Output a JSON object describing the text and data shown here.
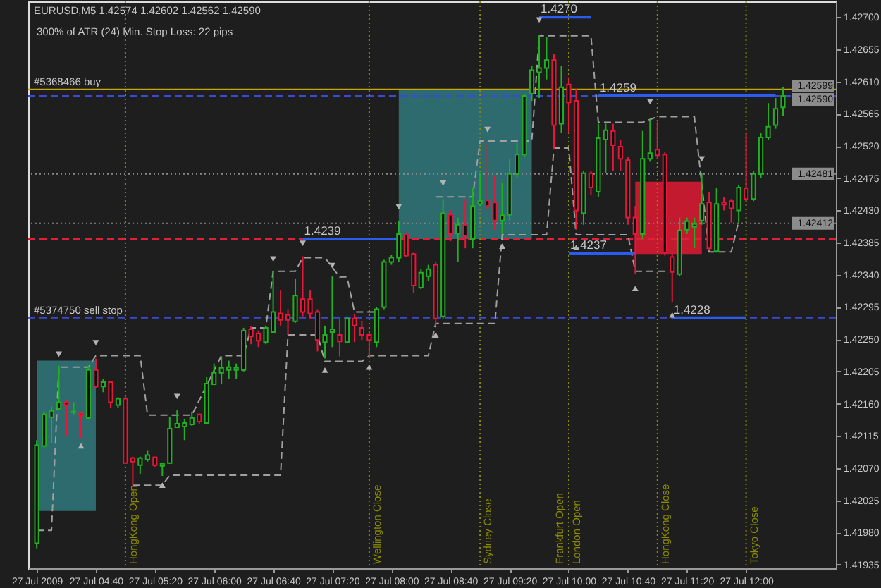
{
  "chart_data": {
    "type": "candlestick",
    "title": "EURUSD,M5 1.42574 1.42602 1.42562 1.42590",
    "subtitle": "300% of ATR (24) Min. Stop Loss: 22 pips",
    "x": [
      "2009-07-27T04:00",
      "2009-07-27T04:05",
      "2009-07-27T04:10",
      "2009-07-27T04:15",
      "2009-07-27T04:20",
      "2009-07-27T04:25",
      "2009-07-27T04:30",
      "2009-07-27T04:35",
      "2009-07-27T04:40",
      "2009-07-27T04:45",
      "2009-07-27T04:50",
      "2009-07-27T04:55",
      "2009-07-27T05:00",
      "2009-07-27T05:05",
      "2009-07-27T05:10",
      "2009-07-27T05:15",
      "2009-07-27T05:20",
      "2009-07-27T05:25",
      "2009-07-27T05:30",
      "2009-07-27T05:35",
      "2009-07-27T05:40",
      "2009-07-27T05:45",
      "2009-07-27T05:50",
      "2009-07-27T05:55",
      "2009-07-27T06:00",
      "2009-07-27T06:05",
      "2009-07-27T06:10",
      "2009-07-27T06:15",
      "2009-07-27T06:20",
      "2009-07-27T06:25",
      "2009-07-27T06:30",
      "2009-07-27T06:35",
      "2009-07-27T06:40",
      "2009-07-27T06:45",
      "2009-07-27T06:50",
      "2009-07-27T06:55",
      "2009-07-27T07:00",
      "2009-07-27T07:05",
      "2009-07-27T07:10",
      "2009-07-27T07:15",
      "2009-07-27T07:20",
      "2009-07-27T07:25",
      "2009-07-27T07:30",
      "2009-07-27T07:35",
      "2009-07-27T07:40",
      "2009-07-27T07:45",
      "2009-07-27T07:50",
      "2009-07-27T07:55",
      "2009-07-27T08:00",
      "2009-07-27T08:05",
      "2009-07-27T08:10",
      "2009-07-27T08:15",
      "2009-07-27T08:20",
      "2009-07-27T08:25",
      "2009-07-27T08:30",
      "2009-07-27T08:35",
      "2009-07-27T08:40",
      "2009-07-27T08:45",
      "2009-07-27T08:50",
      "2009-07-27T08:55",
      "2009-07-27T09:00",
      "2009-07-27T09:05",
      "2009-07-27T09:10",
      "2009-07-27T09:15",
      "2009-07-27T09:20",
      "2009-07-27T09:25",
      "2009-07-27T09:30",
      "2009-07-27T09:35",
      "2009-07-27T09:40",
      "2009-07-27T09:45",
      "2009-07-27T09:50",
      "2009-07-27T09:55",
      "2009-07-27T10:00",
      "2009-07-27T10:05",
      "2009-07-27T10:10",
      "2009-07-27T10:15",
      "2009-07-27T10:20",
      "2009-07-27T10:25",
      "2009-07-27T10:30",
      "2009-07-27T10:35",
      "2009-07-27T10:40",
      "2009-07-27T10:45",
      "2009-07-27T10:50",
      "2009-07-27T10:55",
      "2009-07-27T11:00",
      "2009-07-27T11:05",
      "2009-07-27T11:10",
      "2009-07-27T11:15",
      "2009-07-27T11:20",
      "2009-07-27T11:25",
      "2009-07-27T11:30",
      "2009-07-27T11:35",
      "2009-07-27T11:40",
      "2009-07-27T11:45",
      "2009-07-27T11:50",
      "2009-07-27T11:55",
      "2009-07-27T12:00",
      "2009-07-27T12:05",
      "2009-07-27T12:10",
      "2009-07-27T12:15",
      "2009-07-27T12:20",
      "2009-07-27T12:25"
    ],
    "ohlc": [
      [
        1.41965,
        1.42109,
        1.41958,
        1.42102
      ],
      [
        1.42101,
        1.42149,
        1.42099,
        1.42145
      ],
      [
        1.42141,
        1.42156,
        1.42105,
        1.4215
      ],
      [
        1.42153,
        1.42213,
        1.42151,
        1.42162
      ],
      [
        1.42162,
        1.42164,
        1.42115,
        1.42158
      ],
      [
        1.42148,
        1.42162,
        1.42145,
        1.42149
      ],
      [
        1.42146,
        1.42149,
        1.42112,
        1.42143
      ],
      [
        1.4214,
        1.42213,
        1.42138,
        1.42207
      ],
      [
        1.42207,
        1.42223,
        1.42182,
        1.42184
      ],
      [
        1.42184,
        1.42194,
        1.42176,
        1.4219
      ],
      [
        1.4219,
        1.42192,
        1.42154,
        1.42162
      ],
      [
        1.42158,
        1.42169,
        1.42154,
        1.42167
      ],
      [
        1.42167,
        1.42171,
        1.42076,
        1.42077
      ],
      [
        1.42084,
        1.42086,
        1.42046,
        1.42079
      ],
      [
        1.42074,
        1.42086,
        1.42061,
        1.42084
      ],
      [
        1.42082,
        1.42095,
        1.42079,
        1.42088
      ],
      [
        1.42085,
        1.42086,
        1.42072,
        1.42074
      ],
      [
        1.42073,
        1.42077,
        1.42059,
        1.42076
      ],
      [
        1.42077,
        1.42141,
        1.42076,
        1.42125
      ],
      [
        1.42127,
        1.42151,
        1.42126,
        1.42132
      ],
      [
        1.42128,
        1.42138,
        1.42109,
        1.42133
      ],
      [
        1.42131,
        1.42148,
        1.42129,
        1.4214
      ],
      [
        1.42145,
        1.42146,
        1.42131,
        1.42135
      ],
      [
        1.42133,
        1.42197,
        1.42131,
        1.42188
      ],
      [
        1.42187,
        1.42216,
        1.42186,
        1.42203
      ],
      [
        1.42203,
        1.42226,
        1.42187,
        1.4221
      ],
      [
        1.42207,
        1.4222,
        1.42194,
        1.42211
      ],
      [
        1.42207,
        1.42216,
        1.42194,
        1.4221
      ],
      [
        1.42207,
        1.42266,
        1.42205,
        1.42262
      ],
      [
        1.42264,
        1.42268,
        1.42243,
        1.42254
      ],
      [
        1.42258,
        1.42262,
        1.42239,
        1.42248
      ],
      [
        1.42246,
        1.42269,
        1.42243,
        1.42266
      ],
      [
        1.4226,
        1.42345,
        1.42259,
        1.42288
      ],
      [
        1.42286,
        1.42318,
        1.42269,
        1.42277
      ],
      [
        1.42284,
        1.42292,
        1.42256,
        1.42277
      ],
      [
        1.42275,
        1.42334,
        1.42273,
        1.42311
      ],
      [
        1.42306,
        1.42366,
        1.42282,
        1.42288
      ],
      [
        1.42306,
        1.42318,
        1.42279,
        1.42286
      ],
      [
        1.42288,
        1.42292,
        1.42233,
        1.42249
      ],
      [
        1.42246,
        1.42269,
        1.42223,
        1.42256
      ],
      [
        1.4226,
        1.42338,
        1.42239,
        1.42264
      ],
      [
        1.42256,
        1.42279,
        1.42226,
        1.42247
      ],
      [
        1.42246,
        1.42282,
        1.42245,
        1.42279
      ],
      [
        1.42279,
        1.42285,
        1.42246,
        1.42269
      ],
      [
        1.42266,
        1.42275,
        1.42249,
        1.42256
      ],
      [
        1.42256,
        1.42262,
        1.42226,
        1.42249
      ],
      [
        1.42246,
        1.42295,
        1.42239,
        1.42292
      ],
      [
        1.42295,
        1.42361,
        1.42292,
        1.42358
      ],
      [
        1.42358,
        1.42368,
        1.42354,
        1.42364
      ],
      [
        1.42364,
        1.42415,
        1.42358,
        1.42397
      ],
      [
        1.42396,
        1.42398,
        1.42365,
        1.42367
      ],
      [
        1.42369,
        1.42371,
        1.42315,
        1.42325
      ],
      [
        1.42322,
        1.42348,
        1.4232,
        1.42343
      ],
      [
        1.42338,
        1.42354,
        1.42331,
        1.42348
      ],
      [
        1.42354,
        1.42358,
        1.42269,
        1.42279
      ],
      [
        1.42282,
        1.42446,
        1.42279,
        1.42426
      ],
      [
        1.42424,
        1.4243,
        1.42387,
        1.42397
      ],
      [
        1.42398,
        1.4242,
        1.42358,
        1.4241
      ],
      [
        1.4241,
        1.42446,
        1.42377,
        1.42394
      ],
      [
        1.4239,
        1.42462,
        1.42377,
        1.42436
      ],
      [
        1.42439,
        1.42482,
        1.42436,
        1.42443
      ],
      [
        1.42444,
        1.42524,
        1.4243,
        1.42436
      ],
      [
        1.42441,
        1.42479,
        1.42403,
        1.42416
      ],
      [
        1.42416,
        1.42469,
        1.42397,
        1.42423
      ],
      [
        1.42424,
        1.42502,
        1.42416,
        1.42481
      ],
      [
        1.42481,
        1.42524,
        1.42475,
        1.42508
      ],
      [
        1.42508,
        1.42593,
        1.42505,
        1.4259
      ],
      [
        1.42593,
        1.42632,
        1.42583,
        1.42626
      ],
      [
        1.42623,
        1.42675,
        1.42587,
        1.42629
      ],
      [
        1.42629,
        1.42672,
        1.42613,
        1.4264
      ],
      [
        1.4264,
        1.42649,
        1.42515,
        1.42549
      ],
      [
        1.42551,
        1.42632,
        1.42538,
        1.42602
      ],
      [
        1.42606,
        1.42616,
        1.42538,
        1.42581
      ],
      [
        1.42583,
        1.426,
        1.42403,
        1.4243
      ],
      [
        1.42426,
        1.42485,
        1.4241,
        1.42482
      ],
      [
        1.42482,
        1.42485,
        1.42452,
        1.42462
      ],
      [
        1.42456,
        1.42551,
        1.42449,
        1.42531
      ],
      [
        1.42529,
        1.42551,
        1.42482,
        1.42542
      ],
      [
        1.42541,
        1.42551,
        1.42485,
        1.42521
      ],
      [
        1.42519,
        1.42528,
        1.42485,
        1.42502
      ],
      [
        1.425,
        1.42505,
        1.4241,
        1.4242
      ],
      [
        1.4242,
        1.42436,
        1.42341,
        1.42397
      ],
      [
        1.42397,
        1.42541,
        1.4239,
        1.42502
      ],
      [
        1.42502,
        1.42557,
        1.42498,
        1.4251
      ],
      [
        1.42515,
        1.42554,
        1.42502,
        1.42507
      ],
      [
        1.42508,
        1.42511,
        1.42367,
        1.42371
      ],
      [
        1.42365,
        1.42371,
        1.42302,
        1.42344
      ],
      [
        1.42341,
        1.4242,
        1.42338,
        1.42402
      ],
      [
        1.42403,
        1.4242,
        1.42397,
        1.42415
      ],
      [
        1.42407,
        1.4242,
        1.42377,
        1.42411
      ],
      [
        1.42416,
        1.42482,
        1.4241,
        1.42439
      ],
      [
        1.42441,
        1.42456,
        1.42374,
        1.42377
      ],
      [
        1.42373,
        1.42462,
        1.42371,
        1.42439
      ],
      [
        1.42441,
        1.42449,
        1.4243,
        1.42438
      ],
      [
        1.42443,
        1.42446,
        1.42413,
        1.42433
      ],
      [
        1.4243,
        1.42466,
        1.42413,
        1.42462
      ],
      [
        1.42461,
        1.42538,
        1.42443,
        1.42446
      ],
      [
        1.42446,
        1.42485,
        1.42443,
        1.42481
      ],
      [
        1.42481,
        1.42538,
        1.42475,
        1.42532
      ],
      [
        1.42532,
        1.4258,
        1.42528,
        1.42547
      ],
      [
        1.42549,
        1.42587,
        1.42544,
        1.42572
      ],
      [
        1.42574,
        1.42602,
        1.42562,
        1.4259
      ]
    ],
    "colors": [
      "#22b022",
      "#22b022",
      "#22b022",
      "#22b022",
      "#e8173a",
      "#22b022",
      "#e8173a",
      "#22b022",
      "#e8173a",
      "#22b022",
      "#e8173a",
      "#22b022",
      "#e8173a",
      "#e8173a",
      "#22b022",
      "#22b022",
      "#e8173a",
      "#22b022",
      "#22b022",
      "#22b022",
      "#22b022",
      "#22b022",
      "#e8173a",
      "#22b022",
      "#22b022",
      "#22b022",
      "#22b022",
      "#22b022",
      "#22b022",
      "#e8173a",
      "#e8173a",
      "#22b022",
      "#22b022",
      "#e8173a",
      "#e8173a",
      "#22b022",
      "#e8173a",
      "#e8173a",
      "#e8173a",
      "#22b022",
      "#22b022",
      "#e8173a",
      "#22b022",
      "#e8173a",
      "#e8173a",
      "#e8173a",
      "#22b022",
      "#22b022",
      "#22b022",
      "#22b022",
      "#e8173a",
      "#e8173a",
      "#22b022",
      "#22b022",
      "#e8173a",
      "#22b022",
      "#e8173a",
      "#22b022",
      "#e8173a",
      "#22b022",
      "#22b022",
      "#e8173a",
      "#e8173a",
      "#22b022",
      "#22b022",
      "#22b022",
      "#22b022",
      "#22b022",
      "#22b022",
      "#22b022",
      "#e8173a",
      "#22b022",
      "#e8173a",
      "#e8173a",
      "#22b022",
      "#e8173a",
      "#22b022",
      "#22b022",
      "#e8173a",
      "#e8173a",
      "#e8173a",
      "#e8173a",
      "#22b022",
      "#22b022",
      "#e8173a",
      "#e8173a",
      "#e8173a",
      "#22b022",
      "#22b022",
      "#22b022",
      "#22b022",
      "#e8173a",
      "#22b022",
      "#e8173a",
      "#e8173a",
      "#22b022",
      "#e8173a",
      "#22b022",
      "#22b022",
      "#22b022",
      "#22b022",
      "#22b022"
    ],
    "xlim": [
      "2009-07-27T03:59",
      "2009-07-27T12:56"
    ],
    "ylim": [
      1.4193,
      1.42722
    ],
    "xticks": [
      {
        "value": "2009-07-27T04:00",
        "label": "27 Jul 2009"
      },
      {
        "value": "2009-07-27T04:40",
        "label": "27 Jul 04:40"
      },
      {
        "value": "2009-07-27T05:20",
        "label": "27 Jul 05:20"
      },
      {
        "value": "2009-07-27T06:00",
        "label": "27 Jul 06:00"
      },
      {
        "value": "2009-07-27T06:40",
        "label": "27 Jul 06:40"
      },
      {
        "value": "2009-07-27T07:20",
        "label": "27 Jul 07:20"
      },
      {
        "value": "2009-07-27T08:00",
        "label": "27 Jul 08:00"
      },
      {
        "value": "2009-07-27T08:40",
        "label": "27 Jul 08:40"
      },
      {
        "value": "2009-07-27T09:20",
        "label": "27 Jul 09:20"
      },
      {
        "value": "2009-07-27T10:00",
        "label": "27 Jul 10:00"
      },
      {
        "value": "2009-07-27T10:40",
        "label": "27 Jul 10:40"
      },
      {
        "value": "2009-07-27T11:20",
        "label": "27 Jul 11:20"
      },
      {
        "value": "2009-07-27T12:00",
        "label": "27 Jul 12:00"
      }
    ],
    "yticks": [
      {
        "value": 1.427,
        "label": "1.42700"
      },
      1.42655,
      {
        "value": 1.4261,
        "label": "1.42610"
      },
      1.42565,
      {
        "value": 1.4252,
        "label": "1.42520"
      },
      1.42475,
      {
        "value": 1.4243,
        "label": "1.42430"
      },
      1.42385,
      {
        "value": 1.4234,
        "label": "1.42340"
      },
      1.42295,
      {
        "value": 1.4225,
        "label": "1.42250"
      },
      1.42205,
      {
        "value": 1.4216,
        "label": "1.42160"
      },
      1.42115,
      {
        "value": 1.4207,
        "label": "1.42070"
      },
      1.42025,
      {
        "value": 1.4198,
        "label": "1.41980"
      },
      1.41935
    ],
    "series": [
      {
        "type": "area",
        "color": "#2d6b6f",
        "x": [
          "2009-07-27T04:00",
          "2009-07-27T04:40"
        ],
        "values": [
          null,
          null
        ],
        "upper": [
          1.4222,
          1.4222
        ],
        "lower": [
          1.4201,
          1.4201
        ]
      },
      {
        "type": "area",
        "color": "#2d6b6f",
        "x": [
          "2009-07-27T08:05",
          "2009-07-27T09:35"
        ],
        "values": [
          null,
          null
        ],
        "upper": [
          1.42598,
          1.42598
        ],
        "lower": [
          1.4239,
          1.4239
        ]
      },
      {
        "type": "area",
        "color": "#c41a30",
        "x": [
          "2009-07-27T10:45",
          "2009-07-27T11:30"
        ],
        "values": [
          null,
          null
        ],
        "upper": [
          1.4247,
          1.4247
        ],
        "lower": [
          1.42369,
          1.42369
        ]
      },
      {
        "type": "line",
        "color": "#a0a0a0",
        "line_style": "dashed",
        "x": [
          "2009-07-27T04:00",
          "2009-07-27T04:10",
          "2009-07-27T04:15",
          "2009-07-27T04:35",
          "2009-07-27T04:40",
          "2009-07-27T05:10",
          "2009-07-27T05:15",
          "2009-07-27T05:45",
          "2009-07-27T06:05",
          "2009-07-27T06:20",
          "2009-07-27T06:25",
          "2009-07-27T06:35",
          "2009-07-27T06:40",
          "2009-07-27T06:55",
          "2009-07-27T07:00",
          "2009-07-27T07:15",
          "2009-07-27T07:25",
          "2009-07-27T07:30",
          "2009-07-27T07:35",
          "2009-07-27T07:50",
          "2009-07-27T07:55",
          "2009-07-27T08:30",
          "2009-07-27T08:55",
          "2009-07-27T09:00",
          "2009-07-27T09:35",
          "2009-07-27T09:40",
          "2009-07-27T10:15",
          "2009-07-27T10:20",
          "2009-07-27T10:50",
          "2009-07-27T11:00",
          "2009-07-27T11:25",
          "2009-07-27T11:35",
          "2009-07-27T11:50",
          "2009-07-27T11:55"
        ],
        "values": [
          1.41983,
          1.41983,
          1.42211,
          1.42211,
          1.42227,
          1.42227,
          1.42144,
          1.42144,
          1.42227,
          1.42227,
          1.42266,
          1.42266,
          1.42345,
          1.42345,
          1.42364,
          1.42364,
          1.42337,
          1.42337,
          1.42288,
          1.42288,
          null,
          1.42449,
          1.42449,
          1.42527,
          1.42527,
          1.42674,
          1.42674,
          1.42553,
          1.42553,
          1.42561,
          1.42561,
          1.42372,
          1.42372,
          1.42415
        ]
      },
      {
        "type": "line",
        "color": "#a0a0a0",
        "line_style": "dashed",
        "x": [
          "2009-07-27T05:05",
          "2009-07-27T05:25",
          "2009-07-27T05:30",
          "2009-07-27T06:45",
          "2009-07-27T06:50",
          "2009-07-27T07:10",
          "2009-07-27T07:15",
          "2009-07-27T07:40",
          "2009-07-27T07:45",
          "2009-07-27T08:25",
          "2009-07-27T08:30",
          "2009-07-27T09:10",
          "2009-07-27T09:15",
          "2009-07-27T09:45",
          "2009-07-27T09:50",
          "2009-07-27T10:00",
          "2009-07-27T10:05",
          "2009-07-27T10:40",
          "2009-07-27T10:45",
          "2009-07-27T11:05"
        ],
        "values": [
          1.42046,
          1.42046,
          1.4206,
          1.4206,
          1.42256,
          1.42256,
          1.42219,
          1.42219,
          1.42227,
          1.42227,
          1.42272,
          1.42272,
          1.42396,
          1.42396,
          1.42517,
          1.42517,
          1.42396,
          1.42396,
          1.42345,
          1.42345
        ]
      },
      {
        "type": "line",
        "color": "#2a5cf0",
        "line_style": "solid",
        "x": [
          "2009-07-27T09:40",
          "2009-07-27T10:15"
        ],
        "values": [
          1.427,
          1.427
        ],
        "value_labels": [
          "1.4270",
          null
        ]
      },
      {
        "type": "line",
        "color": "#2a5cf0",
        "line_style": "solid",
        "x": [
          "2009-07-27T07:00",
          "2009-07-27T08:05"
        ],
        "values": [
          1.4239,
          1.4239
        ],
        "value_labels": [
          "1.4239",
          null
        ]
      },
      {
        "type": "line",
        "color": "#2a5cf0",
        "line_style": "solid",
        "x": [
          "2009-07-27T10:20",
          "2009-07-27T12:20"
        ],
        "values": [
          1.4259,
          1.4259
        ],
        "value_labels": [
          "1.4259",
          null
        ]
      },
      {
        "type": "line",
        "color": "#2a5cf0",
        "line_style": "solid",
        "x": [
          "2009-07-27T10:00",
          "2009-07-27T10:45"
        ],
        "values": [
          1.4237,
          1.4237
        ],
        "value_labels": [
          "1.4237",
          null
        ]
      },
      {
        "type": "line",
        "color": "#2a5cf0",
        "line_style": "solid",
        "x": [
          "2009-07-27T11:10",
          "2009-07-27T12:00"
        ],
        "values": [
          1.4228,
          1.4228
        ],
        "value_labels": [
          "1.4228",
          null
        ]
      },
      {
        "type": "scatter",
        "color": "#b4b4b4",
        "marker": "triangle",
        "x": [
          "2009-07-27T04:15",
          "2009-07-27T04:40",
          "2009-07-27T05:35",
          "2009-07-27T06:40",
          "2009-07-27T07:00",
          "2009-07-27T07:20",
          "2009-07-27T08:05",
          "2009-07-27T08:35",
          "2009-07-27T09:05",
          "2009-07-27T09:40",
          "2009-07-27T10:55",
          "2009-07-27T11:30",
          "2009-07-27T04:30",
          "2009-07-27T05:25",
          "2009-07-27T07:15",
          "2009-07-27T07:45",
          "2009-07-27T08:30",
          "2009-07-27T09:15",
          "2009-07-27T10:05",
          "2009-07-27T10:45",
          "2009-07-27T11:10"
        ],
        "values": [
          1.42229,
          1.42245,
          1.4217,
          1.42362,
          1.42384,
          1.42353,
          1.42435,
          1.42468,
          1.42543,
          1.42696,
          1.42582,
          1.42502,
          1.42101,
          1.42046,
          1.42207,
          1.42211,
          1.42256,
          1.4238,
          1.42378,
          1.42321,
          1.42284
        ]
      }
    ],
    "ref_lines": [
      {
        "axis": "y",
        "value": 1.42599,
        "label": "#5368466 buy",
        "color": "#c8a800",
        "line_style": "solid"
      },
      {
        "axis": "y",
        "value": 1.4259,
        "color": "#3a4ad8",
        "line_style": "dashed"
      },
      {
        "axis": "y",
        "value": 1.42481,
        "color": "#8c8c8c",
        "line_style": "dotted"
      },
      {
        "axis": "y",
        "value": 1.42412,
        "color": "#8c8c8c",
        "line_style": "dotted"
      },
      {
        "axis": "y",
        "value": 1.4239,
        "color": "#e0203a",
        "line_style": "dashed"
      },
      {
        "axis": "y",
        "value": 1.4228,
        "label": "#5374750 sell stop",
        "color": "#3a4ad8",
        "line_style": "dashed"
      },
      {
        "axis": "x",
        "value": "2009-07-27T05:00",
        "label": "HongKong Open",
        "color": "#8a8a00",
        "line_style": "dotted"
      },
      {
        "axis": "x",
        "value": "2009-07-27T07:45",
        "label": "Wellington Close",
        "color": "#8a8a00",
        "line_style": "dotted"
      },
      {
        "axis": "x",
        "value": "2009-07-27T09:00",
        "label": "Sydney Close",
        "color": "#8a8a00",
        "line_style": "dotted"
      },
      {
        "axis": "x",
        "value": "2009-07-27T10:00",
        "label": "Frankfurt Open",
        "color": "#8a8a00",
        "line_style": "dotted"
      },
      {
        "axis": "x",
        "value": "2009-07-27T11:00",
        "label": "HongKong Close",
        "color": "#8a8a00",
        "line_style": "dotted"
      },
      {
        "axis": "x",
        "value": "2009-07-27T12:00",
        "label": "Tokyo Close",
        "color": "#8a8a00",
        "line_style": "dotted"
      }
    ],
    "annotations": [
      {
        "text": "London Open",
        "x": "2009-07-27T10:00"
      },
      {
        "text": "1.42599",
        "y": 1.42599
      },
      {
        "text": "1.42590",
        "y": 1.4259
      },
      {
        "text": "1.42481",
        "y": 1.42481
      },
      {
        "text": "1.42412",
        "y": 1.42412
      }
    ]
  }
}
